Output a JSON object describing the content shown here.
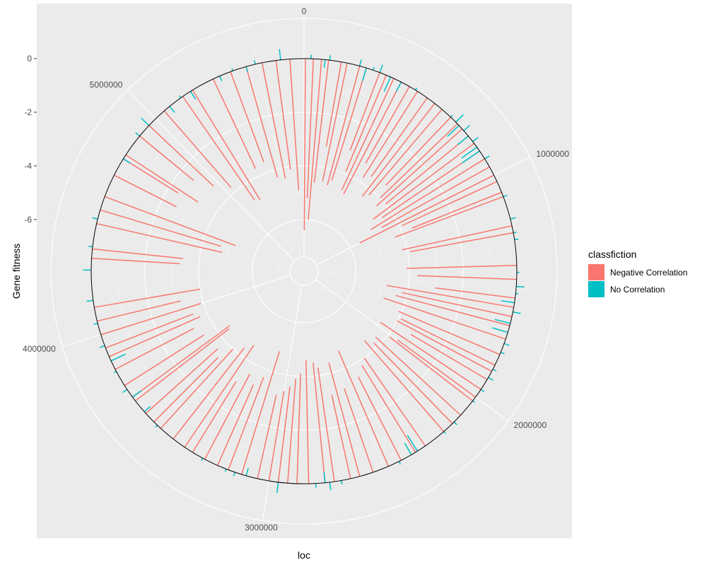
{
  "chart_data": {
    "type": "polar-segment",
    "xlabel": "loc",
    "ylabel": "Gene fitness",
    "theta_ticks": [
      "0",
      "1000000",
      "2000000",
      "3000000",
      "4000000",
      "5000000"
    ],
    "theta_tick_values": [
      0,
      1000000,
      2000000,
      3000000,
      4000000,
      5000000
    ],
    "theta_range": [
      0,
      5700000
    ],
    "radial_ticks": [
      "0",
      "-2",
      "-4",
      "-6"
    ],
    "radial_tick_values": [
      0,
      -2,
      -4,
      -6
    ],
    "radial_range": [
      -7.4,
      1.5
    ],
    "baseline": 0,
    "legend": {
      "title": "classfiction",
      "entries": [
        {
          "label": "Negative Correlation",
          "color": "#F8766D"
        },
        {
          "label": "No Correlation",
          "color": "#00BFC4"
        }
      ],
      "position": "right"
    },
    "colors": {
      "panel": "#EBEBEB",
      "grid": "#FFFFFF",
      "baseline_circle": "#000000"
    },
    "series": [
      {
        "name": "Negative Correlation",
        "color": "#F8766D",
        "points": [
          [
            5800,
            -6.4
          ],
          [
            40000,
            -5.2
          ],
          [
            75000,
            -6.0
          ],
          [
            105000,
            -4.6
          ],
          [
            160000,
            -3.2
          ],
          [
            185000,
            -4.5
          ],
          [
            240000,
            -4.6
          ],
          [
            270000,
            -4.4
          ],
          [
            330000,
            -3.1
          ],
          [
            360000,
            -3.9
          ],
          [
            395000,
            -4.6
          ],
          [
            430000,
            -4.7
          ],
          [
            470000,
            -3.3
          ],
          [
            510000,
            -3.8
          ],
          [
            560000,
            -3.6
          ],
          [
            600000,
            -4.4
          ],
          [
            640000,
            -4.2
          ],
          [
            690000,
            -3.5
          ],
          [
            730000,
            -4.0
          ],
          [
            760000,
            -4.3
          ],
          [
            800000,
            -4.0
          ],
          [
            840000,
            -4.7
          ],
          [
            880000,
            -4.4
          ],
          [
            920000,
            -5.0
          ],
          [
            960000,
            -4.6
          ],
          [
            1000000,
            -5.6
          ],
          [
            1030000,
            -3.9
          ],
          [
            1080000,
            -3.6
          ],
          [
            1100000,
            -4.3
          ],
          [
            1230000,
            -4.2
          ],
          [
            1260000,
            -3.9
          ],
          [
            1400000,
            -4.1
          ],
          [
            1460000,
            -3.7
          ],
          [
            1540000,
            -3.0
          ],
          [
            1580000,
            -4.8
          ],
          [
            1620000,
            -4.2
          ],
          [
            1660000,
            -4.4
          ],
          [
            1720000,
            -4.8
          ],
          [
            1790000,
            -4.1
          ],
          [
            1840000,
            -3.9
          ],
          [
            1870000,
            -4.0
          ],
          [
            1910000,
            -3.3
          ],
          [
            1960000,
            -4.5
          ],
          [
            2000000,
            -3.6
          ],
          [
            2020000,
            -3.9
          ],
          [
            2100000,
            -4.3
          ],
          [
            2150000,
            -4.2
          ],
          [
            2200000,
            -4.5
          ],
          [
            2300000,
            -4.0
          ],
          [
            2350000,
            -3.8
          ],
          [
            2420000,
            -3.5
          ],
          [
            2480000,
            -4.7
          ],
          [
            2550000,
            -3.3
          ],
          [
            2610000,
            -4.4
          ],
          [
            2650000,
            -3.2
          ],
          [
            2720000,
            -4.3
          ],
          [
            2760000,
            -4.5
          ],
          [
            2830000,
            -4.6
          ],
          [
            2880000,
            -4.1
          ],
          [
            2920000,
            -3.9
          ],
          [
            2960000,
            -3.6
          ],
          [
            3000000,
            -3.4
          ],
          [
            3050000,
            -3.2
          ],
          [
            3120000,
            -4.8
          ],
          [
            3180000,
            -3.7
          ],
          [
            3230000,
            -3.3
          ],
          [
            3290000,
            -3.6
          ],
          [
            3350000,
            -3.1
          ],
          [
            3390000,
            -4.6
          ],
          [
            3450000,
            -4.3
          ],
          [
            3520000,
            -4.0
          ],
          [
            3560000,
            -3.4
          ],
          [
            3610000,
            -3.6
          ],
          [
            3680000,
            -4.4
          ],
          [
            3700000,
            -4.5
          ],
          [
            3760000,
            -3.5
          ],
          [
            3840000,
            -3.3
          ],
          [
            3900000,
            -3.7
          ],
          [
            3940000,
            -3.5
          ],
          [
            4000000,
            -3.9
          ],
          [
            4060000,
            -3.2
          ],
          [
            4120000,
            -4.0
          ],
          [
            4330000,
            -3.3
          ],
          [
            4370000,
            -3.4
          ],
          [
            4480000,
            -4.8
          ],
          [
            4540000,
            -4.7
          ],
          [
            4600000,
            -5.2
          ],
          [
            4700000,
            -2.6
          ],
          [
            4780000,
            -2.4
          ],
          [
            4800000,
            -3.2
          ],
          [
            4900000,
            -2.6
          ],
          [
            4960000,
            -3.3
          ],
          [
            5050000,
            -3.8
          ],
          [
            5150000,
            -4.7
          ],
          [
            5200000,
            -4.8
          ],
          [
            5300000,
            -3.7
          ],
          [
            5380000,
            -3.6
          ],
          [
            5450000,
            -4.3
          ],
          [
            5520000,
            -4.4
          ],
          [
            5580000,
            -4.1
          ],
          [
            5640000,
            -4.9
          ]
        ]
      },
      {
        "name": "No Correlation",
        "color": "#00BFC4",
        "points": [
          [
            30000,
            0.15
          ],
          [
            90000,
            -0.3
          ],
          [
            110000,
            0.18
          ],
          [
            240000,
            0.25
          ],
          [
            270000,
            -0.5
          ],
          [
            300000,
            0.12
          ],
          [
            330000,
            0.3
          ],
          [
            380000,
            -0.6
          ],
          [
            430000,
            -0.4
          ],
          [
            500000,
            0.1
          ],
          [
            690000,
            0.1
          ],
          [
            720000,
            0.4
          ],
          [
            740000,
            -0.6
          ],
          [
            770000,
            0.3
          ],
          [
            800000,
            -0.5
          ],
          [
            830000,
            0.25
          ],
          [
            860000,
            -0.7
          ],
          [
            880000,
            -0.8
          ],
          [
            920000,
            0.2
          ],
          [
            1100000,
            0.15
          ],
          [
            1200000,
            0.2
          ],
          [
            1260000,
            0.12
          ],
          [
            1290000,
            0.15
          ],
          [
            1430000,
            0.1
          ],
          [
            1490000,
            0.3
          ],
          [
            1520000,
            0.1
          ],
          [
            1560000,
            -0.5
          ],
          [
            1600000,
            0.3
          ],
          [
            1650000,
            -0.6
          ],
          [
            1690000,
            -0.6
          ],
          [
            1740000,
            0.2
          ],
          [
            1780000,
            0.15
          ],
          [
            1860000,
            0.15
          ],
          [
            1900000,
            0.2
          ],
          [
            1960000,
            0.15
          ],
          [
            2020000,
            0.1
          ],
          [
            2140000,
            0.15
          ],
          [
            2200000,
            0.1
          ],
          [
            2340000,
            -0.7
          ],
          [
            2370000,
            -0.5
          ],
          [
            2430000,
            0.12
          ],
          [
            2690000,
            0.15
          ],
          [
            2740000,
            0.3
          ],
          [
            2760000,
            -0.4
          ],
          [
            2800000,
            0.15
          ],
          [
            2960000,
            0.4
          ],
          [
            3100000,
            -0.3
          ],
          [
            3150000,
            0.15
          ],
          [
            3190000,
            0.1
          ],
          [
            3300000,
            0.1
          ],
          [
            3540000,
            0.1
          ],
          [
            3620000,
            -0.3
          ],
          [
            3700000,
            -0.4
          ],
          [
            3740000,
            0.2
          ],
          [
            3830000,
            0.1
          ],
          [
            3880000,
            -0.6
          ],
          [
            3950000,
            0.2
          ],
          [
            4050000,
            0.15
          ],
          [
            4150000,
            0.25
          ],
          [
            4280000,
            0.3
          ],
          [
            4380000,
            0.15
          ],
          [
            4500000,
            0.2
          ],
          [
            4780000,
            -0.3
          ],
          [
            4900000,
            0.2
          ],
          [
            4960000,
            0.4
          ],
          [
            5080000,
            -0.3
          ],
          [
            5140000,
            0.1
          ],
          [
            5190000,
            -0.35
          ],
          [
            5330000,
            -0.2
          ],
          [
            5390000,
            0.1
          ],
          [
            5450000,
            -0.2
          ],
          [
            5490000,
            0.15
          ],
          [
            5600000,
            0.4
          ]
        ]
      }
    ]
  }
}
